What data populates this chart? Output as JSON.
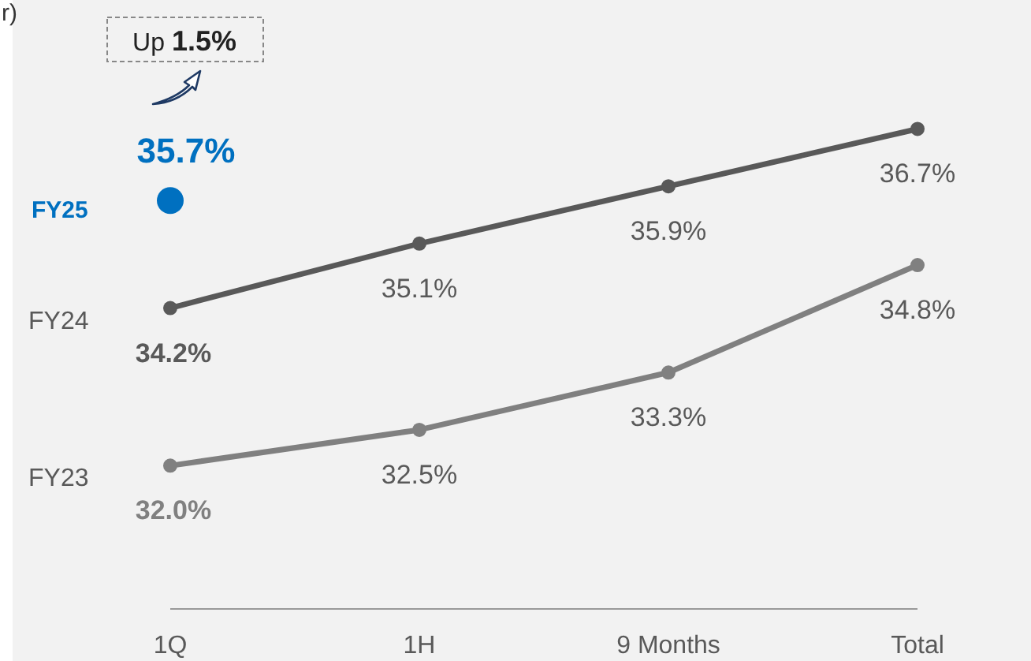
{
  "chart_data": {
    "type": "line",
    "categories": [
      "1Q",
      "1H",
      "9 Months",
      "Total"
    ],
    "ylim": [
      30,
      38.5
    ],
    "marker": "circle",
    "line_style": "solid",
    "series": [
      {
        "name": "FY24",
        "color": "#595959",
        "values": [
          34.2,
          35.1,
          35.9,
          36.7
        ],
        "value_labels": [
          "34.2%",
          "35.1%",
          "35.9%",
          "36.7%"
        ]
      },
      {
        "name": "FY23",
        "color": "#808080",
        "values": [
          32.0,
          32.5,
          33.3,
          34.8
        ],
        "value_labels": [
          "32.0%",
          "32.5%",
          "33.3%",
          "34.8%"
        ]
      },
      {
        "name": "FY25",
        "type": "scatter",
        "color": "#0070c0",
        "values": [
          35.7,
          null,
          null,
          null
        ],
        "value_labels": [
          "35.7%",
          null,
          null,
          null
        ]
      }
    ],
    "annotations": [
      "r)",
      "Up 1.5%"
    ]
  }
}
